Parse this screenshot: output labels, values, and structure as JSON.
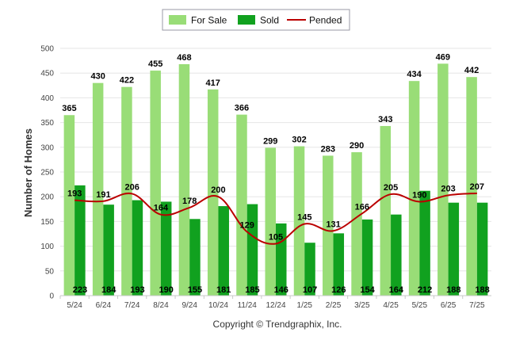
{
  "chart_data": {
    "type": "bar",
    "ylabel": "Number of Homes",
    "xlabel": "",
    "ylim": [
      0,
      500
    ],
    "yticks": [
      0,
      50,
      100,
      150,
      200,
      250,
      300,
      350,
      400,
      450,
      500
    ],
    "grid": true,
    "legend_position": "top-center",
    "categories": [
      "5/24",
      "6/24",
      "7/24",
      "8/24",
      "9/24",
      "10/24",
      "11/24",
      "12/24",
      "1/25",
      "2/25",
      "3/25",
      "4/25",
      "5/25",
      "6/25",
      "7/25"
    ],
    "series": [
      {
        "name": "For Sale",
        "kind": "bar",
        "color": "#99dd77",
        "values": [
          365,
          430,
          422,
          455,
          468,
          417,
          366,
          299,
          302,
          283,
          290,
          343,
          434,
          469,
          442
        ]
      },
      {
        "name": "Sold",
        "kind": "bar",
        "color": "#11a11f",
        "values": [
          223,
          184,
          193,
          190,
          155,
          181,
          185,
          146,
          107,
          126,
          154,
          164,
          212,
          188,
          188
        ]
      },
      {
        "name": "Pended",
        "kind": "line",
        "color": "#bb0000",
        "values": [
          193,
          191,
          206,
          164,
          178,
          200,
          129,
          105,
          145,
          131,
          166,
          205,
          190,
          203,
          207
        ]
      }
    ]
  },
  "footer": {
    "copyright": "Copyright © Trendgraphix, Inc."
  }
}
